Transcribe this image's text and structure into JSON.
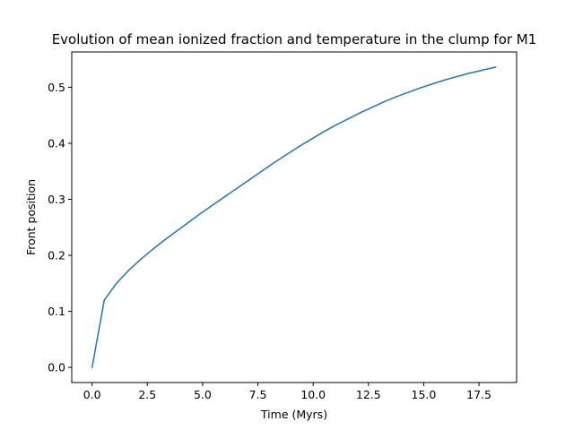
{
  "chart_data": {
    "type": "line",
    "title": "Evolution of mean ionized fraction and temperature in the clump for M1",
    "xlabel": "Time (Myrs)",
    "ylabel": "Front position",
    "xlim": [
      -0.92,
      19.2
    ],
    "ylim": [
      -0.027,
      0.563
    ],
    "xticks": [
      0.0,
      2.5,
      5.0,
      7.5,
      10.0,
      12.5,
      15.0,
      17.5
    ],
    "xtick_labels": [
      "0.0",
      "2.5",
      "5.0",
      "7.5",
      "10.0",
      "12.5",
      "15.0",
      "17.5"
    ],
    "yticks": [
      0.0,
      0.1,
      0.2,
      0.3,
      0.4,
      0.5
    ],
    "ytick_labels": [
      "0.0",
      "0.1",
      "0.2",
      "0.3",
      "0.4",
      "0.5"
    ],
    "grid": false,
    "series": [
      {
        "color": "#1f77b4",
        "x": [
          0.0,
          0.55,
          1.1,
          1.65,
          2.2,
          2.75,
          3.3,
          3.85,
          4.4,
          4.95,
          5.5,
          6.05,
          6.6,
          7.15,
          7.7,
          8.25,
          8.8,
          9.35,
          9.9,
          10.45,
          11.0,
          11.55,
          12.1,
          12.65,
          13.2,
          13.75,
          14.3,
          14.85,
          15.4,
          15.95,
          16.5,
          17.05,
          17.6,
          18.25
        ],
        "y": [
          0.0,
          0.12,
          0.15,
          0.173,
          0.193,
          0.211,
          0.228,
          0.244,
          0.26,
          0.276,
          0.291,
          0.306,
          0.321,
          0.336,
          0.351,
          0.366,
          0.38,
          0.394,
          0.407,
          0.42,
          0.432,
          0.443,
          0.454,
          0.464,
          0.474,
          0.483,
          0.491,
          0.499,
          0.506,
          0.513,
          0.519,
          0.525,
          0.53,
          0.536
        ]
      }
    ]
  }
}
